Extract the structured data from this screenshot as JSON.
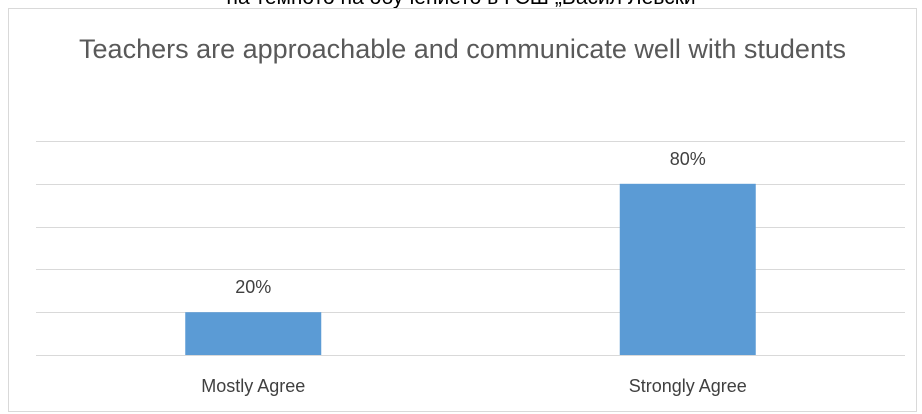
{
  "page": {
    "top_caption": "на темпото на обучението в ГСШ „Васил Левски"
  },
  "chart_data": {
    "type": "bar",
    "title": "Teachers are approachable and communicate well with students",
    "categories": [
      "Mostly Agree",
      "Strongly Agree"
    ],
    "values": [
      20,
      80
    ],
    "data_labels": [
      "20%",
      "80%"
    ],
    "xlabel": "",
    "ylabel": "",
    "ylim": [
      0,
      100
    ],
    "y_axis_labels_shown": false,
    "grid": true,
    "legend": "none",
    "colors": {
      "bar": "#5b9bd5",
      "grid": "#d9d9d9",
      "axis": "#d9d9d9",
      "title": "#595959",
      "labels": "#404040"
    }
  }
}
